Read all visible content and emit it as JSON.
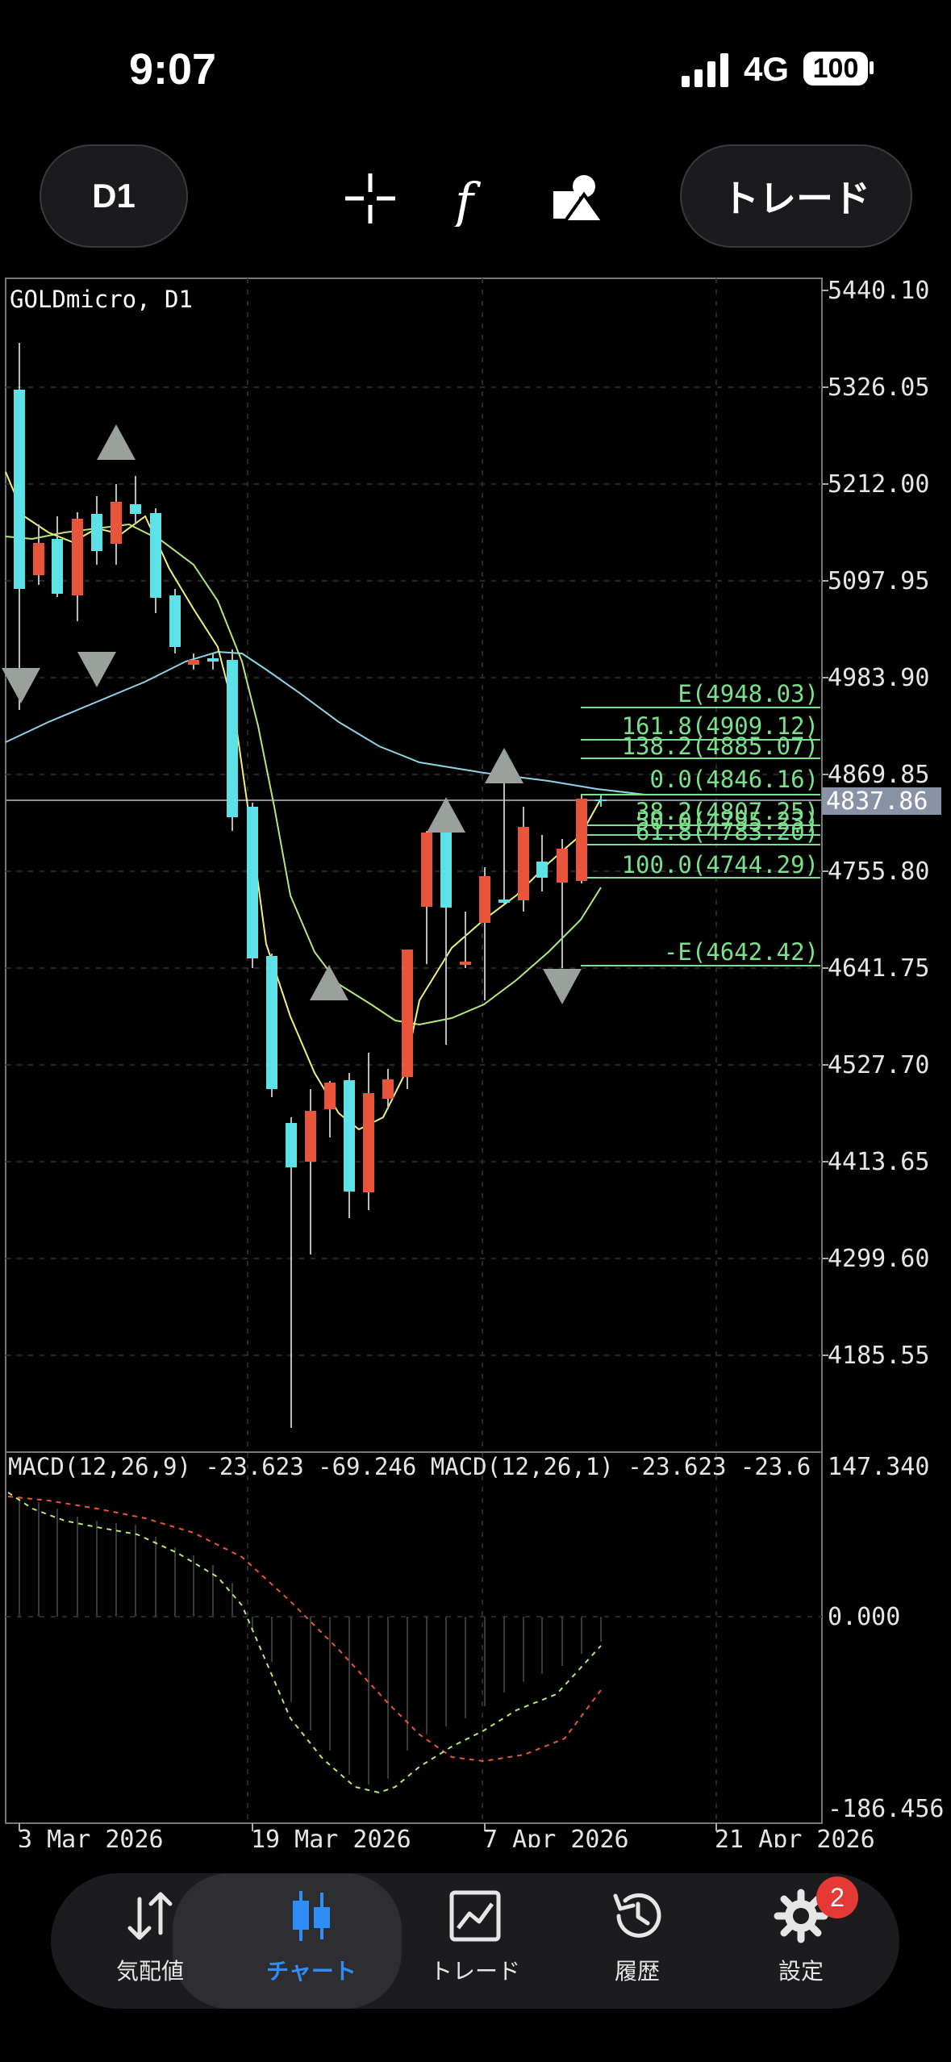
{
  "status": {
    "time": "9:07",
    "network": "4G",
    "battery": "100"
  },
  "toolbar": {
    "timeframe": "D1",
    "trade_label": "トレード"
  },
  "chart": {
    "symbol_label": "GOLDmicro, D1",
    "price_labels": [
      "5440.10",
      "5326.05",
      "5212.00",
      "5097.95",
      "4983.90",
      "4869.85",
      "4755.80",
      "4641.75",
      "4527.70",
      "4413.65",
      "4299.60",
      "4185.55"
    ],
    "current_price": "4837.86",
    "fib_labels": [
      "E(4948.03)",
      "161.8(4909.12)",
      "138.2(4885.07)",
      "0.0(4846.16)",
      "38.2(4807.25)",
      "50.0(4795.23)",
      "61.8(4783.20)",
      "100.0(4744.29)",
      "-E(4642.42)"
    ],
    "macd_label": "MACD(12,26,9) -23.623 -69.246 MACD(12,26,1) -23.623 -23.6",
    "macd_labels": [
      "147.340",
      "0.000",
      "-186.456"
    ],
    "date_labels": [
      "3 Mar 2026",
      "19 Mar 2026",
      "7 Apr 2026",
      "21 Apr 2026"
    ],
    "colors": {
      "bull": "#5ce1e6",
      "bear": "#e8553a",
      "ma_fast": "#f2ef7a",
      "ma_mid": "#b4e87a",
      "ma_slow": "#8fd3e6",
      "fib": "#7be08a",
      "signal_line": "#e8553a",
      "macd_line": "#b4e87a"
    }
  },
  "nav": {
    "items": [
      {
        "label": "気配値",
        "icon": "arrows-updown-icon"
      },
      {
        "label": "チャート",
        "icon": "candlestick-icon"
      },
      {
        "label": "トレード",
        "icon": "trade-chart-icon"
      },
      {
        "label": "履歴",
        "icon": "history-icon"
      },
      {
        "label": "設定",
        "icon": "gear-icon"
      }
    ],
    "settings_badge": "2"
  }
}
